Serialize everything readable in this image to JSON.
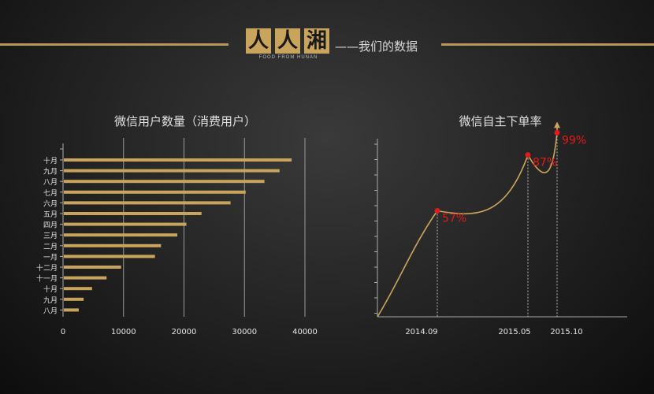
{
  "header": {
    "logo_text": "人人湘",
    "logo_sub": "FOOD FROM HUNAN",
    "subtitle": "——我们的数据"
  },
  "colors": {
    "accent": "#c9a45c",
    "highlight": "#e11b1b",
    "axis": "#aaaaaa"
  },
  "chart_data": [
    {
      "type": "bar",
      "orientation": "horizontal",
      "title": "微信用户数量（消费用户）",
      "categories": [
        "十月",
        "九月",
        "八月",
        "七月",
        "六月",
        "五月",
        "四月",
        "三月",
        "二月",
        "一月",
        "十二月",
        "十一月",
        "十月",
        "九月",
        "八月"
      ],
      "values": [
        37800,
        35800,
        33300,
        30200,
        27700,
        22900,
        20400,
        18900,
        16200,
        15200,
        9600,
        7200,
        4800,
        3400,
        2600
      ],
      "xlim": [
        0,
        40000
      ],
      "xticks": [
        0,
        10000,
        20000,
        30000,
        40000
      ],
      "grid": true
    },
    {
      "type": "line",
      "title": "微信自主下单率",
      "points": [
        {
          "x": "2014.09",
          "value": 57,
          "label": "57%"
        },
        {
          "x": "2015.05",
          "value": 87,
          "label": "87%"
        },
        {
          "x": "2015.10",
          "value": 99,
          "label": "99%"
        }
      ],
      "xticks": [
        "2014.09",
        "2015.05",
        "2015.10"
      ]
    }
  ]
}
